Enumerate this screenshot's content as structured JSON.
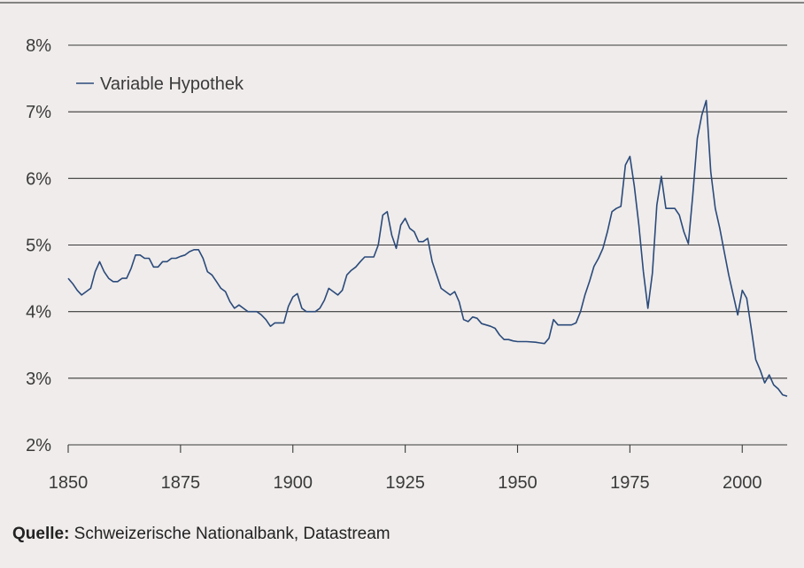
{
  "chart_data": {
    "type": "line",
    "title": "",
    "xlabel": "",
    "ylabel": "",
    "xlim": [
      1850,
      2010
    ],
    "ylim": [
      2,
      8
    ],
    "x_ticks": [
      1850,
      1875,
      1900,
      1925,
      1950,
      1975,
      2000
    ],
    "y_ticks": [
      2,
      3,
      4,
      5,
      6,
      7,
      8
    ],
    "y_tick_labels": [
      "2%",
      "3%",
      "4%",
      "5%",
      "6%",
      "7%",
      "8%"
    ],
    "grid": "horizontal",
    "legend_position": "top-left",
    "series": [
      {
        "name": "Variable Hypothek",
        "color": "#2b4a7a",
        "points": [
          [
            1850,
            4.5
          ],
          [
            1851,
            4.42
          ],
          [
            1852,
            4.32
          ],
          [
            1853,
            4.25
          ],
          [
            1854,
            4.3
          ],
          [
            1855,
            4.35
          ],
          [
            1856,
            4.6
          ],
          [
            1857,
            4.75
          ],
          [
            1858,
            4.6
          ],
          [
            1859,
            4.5
          ],
          [
            1860,
            4.45
          ],
          [
            1861,
            4.45
          ],
          [
            1862,
            4.5
          ],
          [
            1863,
            4.5
          ],
          [
            1864,
            4.65
          ],
          [
            1865,
            4.85
          ],
          [
            1866,
            4.85
          ],
          [
            1867,
            4.8
          ],
          [
            1868,
            4.8
          ],
          [
            1869,
            4.67
          ],
          [
            1870,
            4.67
          ],
          [
            1871,
            4.75
          ],
          [
            1872,
            4.75
          ],
          [
            1873,
            4.8
          ],
          [
            1874,
            4.8
          ],
          [
            1875,
            4.83
          ],
          [
            1876,
            4.85
          ],
          [
            1877,
            4.9
          ],
          [
            1878,
            4.93
          ],
          [
            1879,
            4.93
          ],
          [
            1880,
            4.8
          ],
          [
            1881,
            4.6
          ],
          [
            1882,
            4.55
          ],
          [
            1883,
            4.45
          ],
          [
            1884,
            4.35
          ],
          [
            1885,
            4.3
          ],
          [
            1886,
            4.15
          ],
          [
            1887,
            4.05
          ],
          [
            1888,
            4.1
          ],
          [
            1889,
            4.05
          ],
          [
            1890,
            4.0
          ],
          [
            1891,
            4.0
          ],
          [
            1892,
            4.0
          ],
          [
            1893,
            3.95
          ],
          [
            1894,
            3.88
          ],
          [
            1895,
            3.78
          ],
          [
            1896,
            3.83
          ],
          [
            1897,
            3.83
          ],
          [
            1898,
            3.83
          ],
          [
            1899,
            4.08
          ],
          [
            1900,
            4.22
          ],
          [
            1901,
            4.27
          ],
          [
            1902,
            4.05
          ],
          [
            1903,
            4.0
          ],
          [
            1904,
            4.0
          ],
          [
            1905,
            4.0
          ],
          [
            1906,
            4.05
          ],
          [
            1907,
            4.17
          ],
          [
            1908,
            4.35
          ],
          [
            1909,
            4.3
          ],
          [
            1910,
            4.25
          ],
          [
            1911,
            4.32
          ],
          [
            1912,
            4.55
          ],
          [
            1913,
            4.62
          ],
          [
            1914,
            4.67
          ],
          [
            1915,
            4.75
          ],
          [
            1916,
            4.82
          ],
          [
            1917,
            4.82
          ],
          [
            1918,
            4.82
          ],
          [
            1919,
            5.0
          ],
          [
            1920,
            5.45
          ],
          [
            1921,
            5.5
          ],
          [
            1922,
            5.15
          ],
          [
            1923,
            4.95
          ],
          [
            1924,
            5.3
          ],
          [
            1925,
            5.4
          ],
          [
            1926,
            5.25
          ],
          [
            1927,
            5.2
          ],
          [
            1928,
            5.05
          ],
          [
            1929,
            5.05
          ],
          [
            1930,
            5.1
          ],
          [
            1931,
            4.75
          ],
          [
            1932,
            4.55
          ],
          [
            1933,
            4.35
          ],
          [
            1934,
            4.3
          ],
          [
            1935,
            4.25
          ],
          [
            1936,
            4.3
          ],
          [
            1937,
            4.15
          ],
          [
            1938,
            3.88
          ],
          [
            1939,
            3.85
          ],
          [
            1940,
            3.92
          ],
          [
            1941,
            3.9
          ],
          [
            1942,
            3.82
          ],
          [
            1943,
            3.8
          ],
          [
            1944,
            3.78
          ],
          [
            1945,
            3.75
          ],
          [
            1946,
            3.65
          ],
          [
            1947,
            3.58
          ],
          [
            1948,
            3.58
          ],
          [
            1949,
            3.56
          ],
          [
            1950,
            3.55
          ],
          [
            1952,
            3.55
          ],
          [
            1954,
            3.54
          ],
          [
            1955,
            3.53
          ],
          [
            1956,
            3.52
          ],
          [
            1957,
            3.6
          ],
          [
            1958,
            3.88
          ],
          [
            1959,
            3.8
          ],
          [
            1960,
            3.8
          ],
          [
            1961,
            3.8
          ],
          [
            1962,
            3.8
          ],
          [
            1963,
            3.83
          ],
          [
            1964,
            4.0
          ],
          [
            1965,
            4.25
          ],
          [
            1966,
            4.45
          ],
          [
            1967,
            4.68
          ],
          [
            1968,
            4.8
          ],
          [
            1969,
            4.95
          ],
          [
            1970,
            5.2
          ],
          [
            1971,
            5.5
          ],
          [
            1972,
            5.55
          ],
          [
            1973,
            5.58
          ],
          [
            1974,
            6.2
          ],
          [
            1975,
            6.33
          ],
          [
            1976,
            5.88
          ],
          [
            1977,
            5.3
          ],
          [
            1978,
            4.6
          ],
          [
            1979,
            4.05
          ],
          [
            1980,
            4.58
          ],
          [
            1981,
            5.6
          ],
          [
            1982,
            6.03
          ],
          [
            1983,
            5.55
          ],
          [
            1984,
            5.55
          ],
          [
            1985,
            5.55
          ],
          [
            1986,
            5.45
          ],
          [
            1987,
            5.2
          ],
          [
            1988,
            5.02
          ],
          [
            1989,
            5.75
          ],
          [
            1990,
            6.6
          ],
          [
            1991,
            6.95
          ],
          [
            1992,
            7.17
          ],
          [
            1993,
            6.1
          ],
          [
            1994,
            5.55
          ],
          [
            1995,
            5.25
          ],
          [
            1996,
            4.9
          ],
          [
            1997,
            4.55
          ],
          [
            1998,
            4.25
          ],
          [
            1999,
            3.95
          ],
          [
            2000,
            4.32
          ],
          [
            2001,
            4.2
          ],
          [
            2002,
            3.75
          ],
          [
            2003,
            3.28
          ],
          [
            2004,
            3.12
          ],
          [
            2005,
            2.93
          ],
          [
            2006,
            3.05
          ],
          [
            2007,
            2.9
          ],
          [
            2008,
            2.84
          ],
          [
            2009,
            2.75
          ],
          [
            2010,
            2.73
          ]
        ]
      }
    ]
  },
  "source": {
    "label": "Quelle:",
    "text": " Schweizerische Nationalbank, Datastream"
  }
}
